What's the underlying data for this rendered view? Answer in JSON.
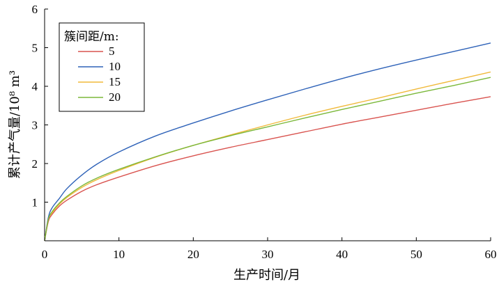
{
  "chart_data": {
    "type": "line",
    "xlabel": "生产时间/月",
    "ylabel": "累计产气量/10⁸ m³",
    "xlim": [
      0,
      60
    ],
    "ylim": [
      0,
      6
    ],
    "xticks": [
      0,
      10,
      20,
      30,
      40,
      50,
      60
    ],
    "yticks": [
      0,
      1,
      2,
      3,
      4,
      5,
      6
    ],
    "xtick_labels": [
      "0",
      "10",
      "20",
      "30",
      "40",
      "50",
      "60"
    ],
    "ytick_labels": [
      "0",
      "1",
      "2",
      "3",
      "4",
      "5",
      "6"
    ],
    "grid": false,
    "legend": {
      "title": "簇间距/m:",
      "placement": "top-left"
    },
    "x": [
      0,
      0.5,
      1,
      2,
      3,
      5,
      7,
      10,
      15,
      20,
      25,
      30,
      35,
      40,
      45,
      50,
      55,
      60
    ],
    "series": [
      {
        "name": "5",
        "color": "#d9534f",
        "values": [
          0,
          0.5,
          0.68,
          0.9,
          1.05,
          1.28,
          1.45,
          1.65,
          1.95,
          2.2,
          2.42,
          2.62,
          2.82,
          3.02,
          3.2,
          3.38,
          3.56,
          3.73
        ]
      },
      {
        "name": "10",
        "color": "#2e62b8",
        "values": [
          0,
          0.6,
          0.85,
          1.1,
          1.35,
          1.7,
          1.98,
          2.3,
          2.72,
          3.05,
          3.36,
          3.65,
          3.93,
          4.2,
          4.45,
          4.68,
          4.9,
          5.12
        ]
      },
      {
        "name": "15",
        "color": "#f0b93a",
        "values": [
          0,
          0.55,
          0.72,
          0.95,
          1.12,
          1.38,
          1.58,
          1.82,
          2.17,
          2.47,
          2.74,
          3.0,
          3.25,
          3.48,
          3.7,
          3.93,
          4.15,
          4.37
        ]
      },
      {
        "name": "20",
        "color": "#7bb83a",
        "values": [
          0,
          0.55,
          0.75,
          0.98,
          1.15,
          1.42,
          1.62,
          1.85,
          2.18,
          2.47,
          2.72,
          2.95,
          3.18,
          3.4,
          3.61,
          3.82,
          4.02,
          4.23
        ]
      }
    ]
  }
}
